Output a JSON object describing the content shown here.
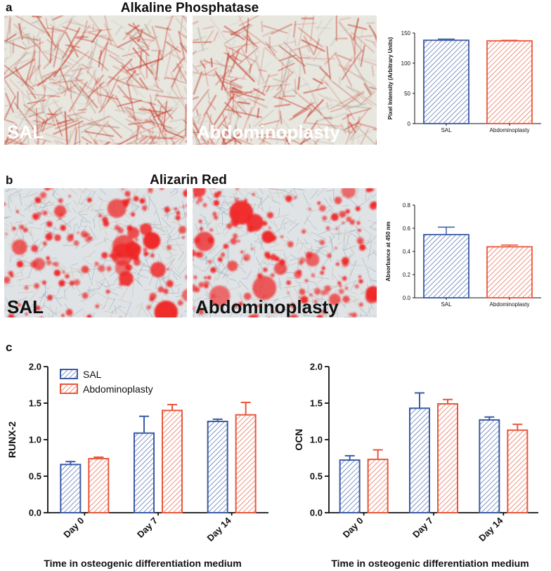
{
  "panels": {
    "a": {
      "letter": "a",
      "title": "Alkaline Phosphatase",
      "image_labels": [
        "SAL",
        "Abdominoplasty"
      ]
    },
    "b": {
      "letter": "b",
      "title": "Alizarin Red",
      "image_labels": [
        "SAL",
        "Abdominoplasty"
      ]
    },
    "c": {
      "letter": "c",
      "xlabel": "Time in osteogenic differentiation medium",
      "legend": [
        "SAL",
        "Abdominoplasty"
      ]
    }
  },
  "colors": {
    "sal": "#3b5ba5",
    "abdominoplasty": "#e8573a",
    "axis": "#111111",
    "alp_stain": "#c8402f",
    "alizarin_stain": "#f02525",
    "micrograph_bg": "#e7e6df"
  },
  "chart_data": [
    {
      "id": "alp",
      "type": "bar",
      "categories": [
        "SAL",
        "Abdominoplasty"
      ],
      "values": [
        138,
        137
      ],
      "errors": [
        2,
        1
      ],
      "ylabel": "Pixel Intensity (Arbitrary Units)",
      "ylim": [
        0,
        150
      ],
      "yticks": [
        0,
        50,
        100,
        150
      ],
      "pattern": "hatched"
    },
    {
      "id": "alizarin",
      "type": "bar",
      "categories": [
        "SAL",
        "Abdominoplasty"
      ],
      "values": [
        0.545,
        0.44
      ],
      "errors": [
        0.065,
        0.015
      ],
      "ylabel": "Absorbance at 450 nm",
      "ylim": [
        0,
        0.8
      ],
      "yticks": [
        "0.0",
        "0.2",
        "0.4",
        "0.6",
        "0.8"
      ],
      "pattern": "hatched"
    },
    {
      "id": "runx2",
      "type": "bar",
      "categories": [
        "Day 0",
        "Day 7",
        "Day 14"
      ],
      "series": [
        {
          "name": "SAL",
          "values": [
            0.66,
            1.09,
            1.25
          ],
          "errors": [
            0.04,
            0.23,
            0.03
          ]
        },
        {
          "name": "Abdominoplasty",
          "values": [
            0.74,
            1.4,
            1.34
          ],
          "errors": [
            0.02,
            0.08,
            0.17
          ]
        }
      ],
      "ylabel": "RUNX-2",
      "xlabel": "Time in osteogenic differentiation medium",
      "ylim": [
        0,
        2.0
      ],
      "yticks": [
        "0.0",
        "0.5",
        "1.0",
        "1.5",
        "2.0"
      ],
      "legend": "top-left"
    },
    {
      "id": "ocn",
      "type": "bar",
      "categories": [
        "Day 0",
        "Day 7",
        "Day 14"
      ],
      "series": [
        {
          "name": "SAL",
          "values": [
            0.72,
            1.43,
            1.27
          ],
          "errors": [
            0.06,
            0.21,
            0.04
          ]
        },
        {
          "name": "Abdominoplasty",
          "values": [
            0.73,
            1.49,
            1.13
          ],
          "errors": [
            0.13,
            0.06,
            0.08
          ]
        }
      ],
      "ylabel": "OCN",
      "xlabel": "Time in osteogenic differentiation medium",
      "ylim": [
        0,
        2.0
      ],
      "yticks": [
        "0.0",
        "0.5",
        "1.0",
        "1.5",
        "2.0"
      ]
    }
  ]
}
